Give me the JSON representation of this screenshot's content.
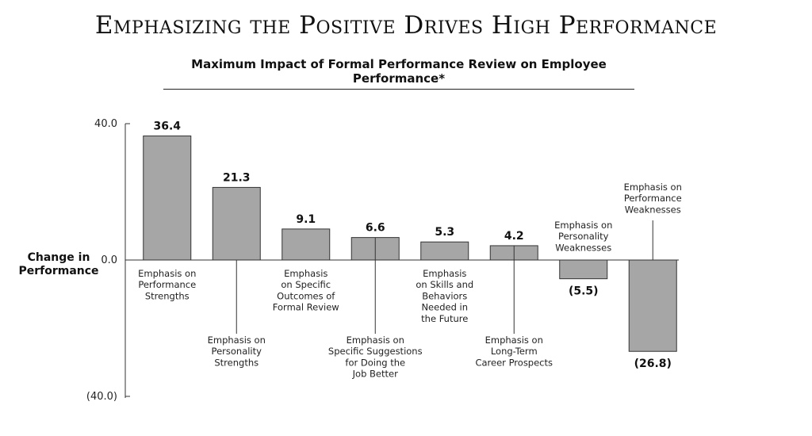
{
  "chart_data": {
    "type": "bar",
    "title": "Emphasizing the Positive Drives High Performance",
    "subtitle": "Maximum Impact of Formal Performance Review on Employee Performance*",
    "ylabel": "Change in Performance",
    "ylim": [
      -40,
      40
    ],
    "yticks": [
      "40.0",
      "0.0",
      "(40.0)"
    ],
    "categories": [
      "Emphasis on Performance Strengths",
      "Emphasis on Personality Strengths",
      "Emphasis on Specific Outcomes of Formal Review",
      "Emphasis on Specific Suggestions for Doing the Job Better",
      "Emphasis on Skills and Behaviors Needed in the Future",
      "Emphasis on Long-Term Career Prospects",
      "Emphasis on Personality Weaknesses",
      "Emphasis on Performance Weaknesses"
    ],
    "category_lines": [
      [
        "Emphasis on",
        "Performance",
        "Strengths"
      ],
      [
        "Emphasis on",
        "Personality",
        "Strengths"
      ],
      [
        "Emphasis",
        "on Specific",
        "Outcomes of",
        "Formal Review"
      ],
      [
        "Emphasis on",
        "Specific Suggestions",
        "for Doing the",
        "Job Better"
      ],
      [
        "Emphasis",
        "on Skills and",
        "Behaviors",
        "Needed in",
        "the Future"
      ],
      [
        "Emphasis on",
        "Long-Term",
        "Career Prospects"
      ],
      [
        "Emphasis on",
        "Personality",
        "Weaknesses"
      ],
      [
        "Emphasis on",
        "Performance",
        "Weaknesses"
      ]
    ],
    "values": [
      36.4,
      21.3,
      9.1,
      6.6,
      5.3,
      4.2,
      -5.5,
      -26.8
    ],
    "value_labels": [
      "36.4",
      "21.3",
      "9.1",
      "6.6",
      "5.3",
      "4.2",
      "(5.5)",
      "(26.8)"
    ],
    "bar_color": "#a6a6a6",
    "grid": false,
    "legend": "none"
  }
}
